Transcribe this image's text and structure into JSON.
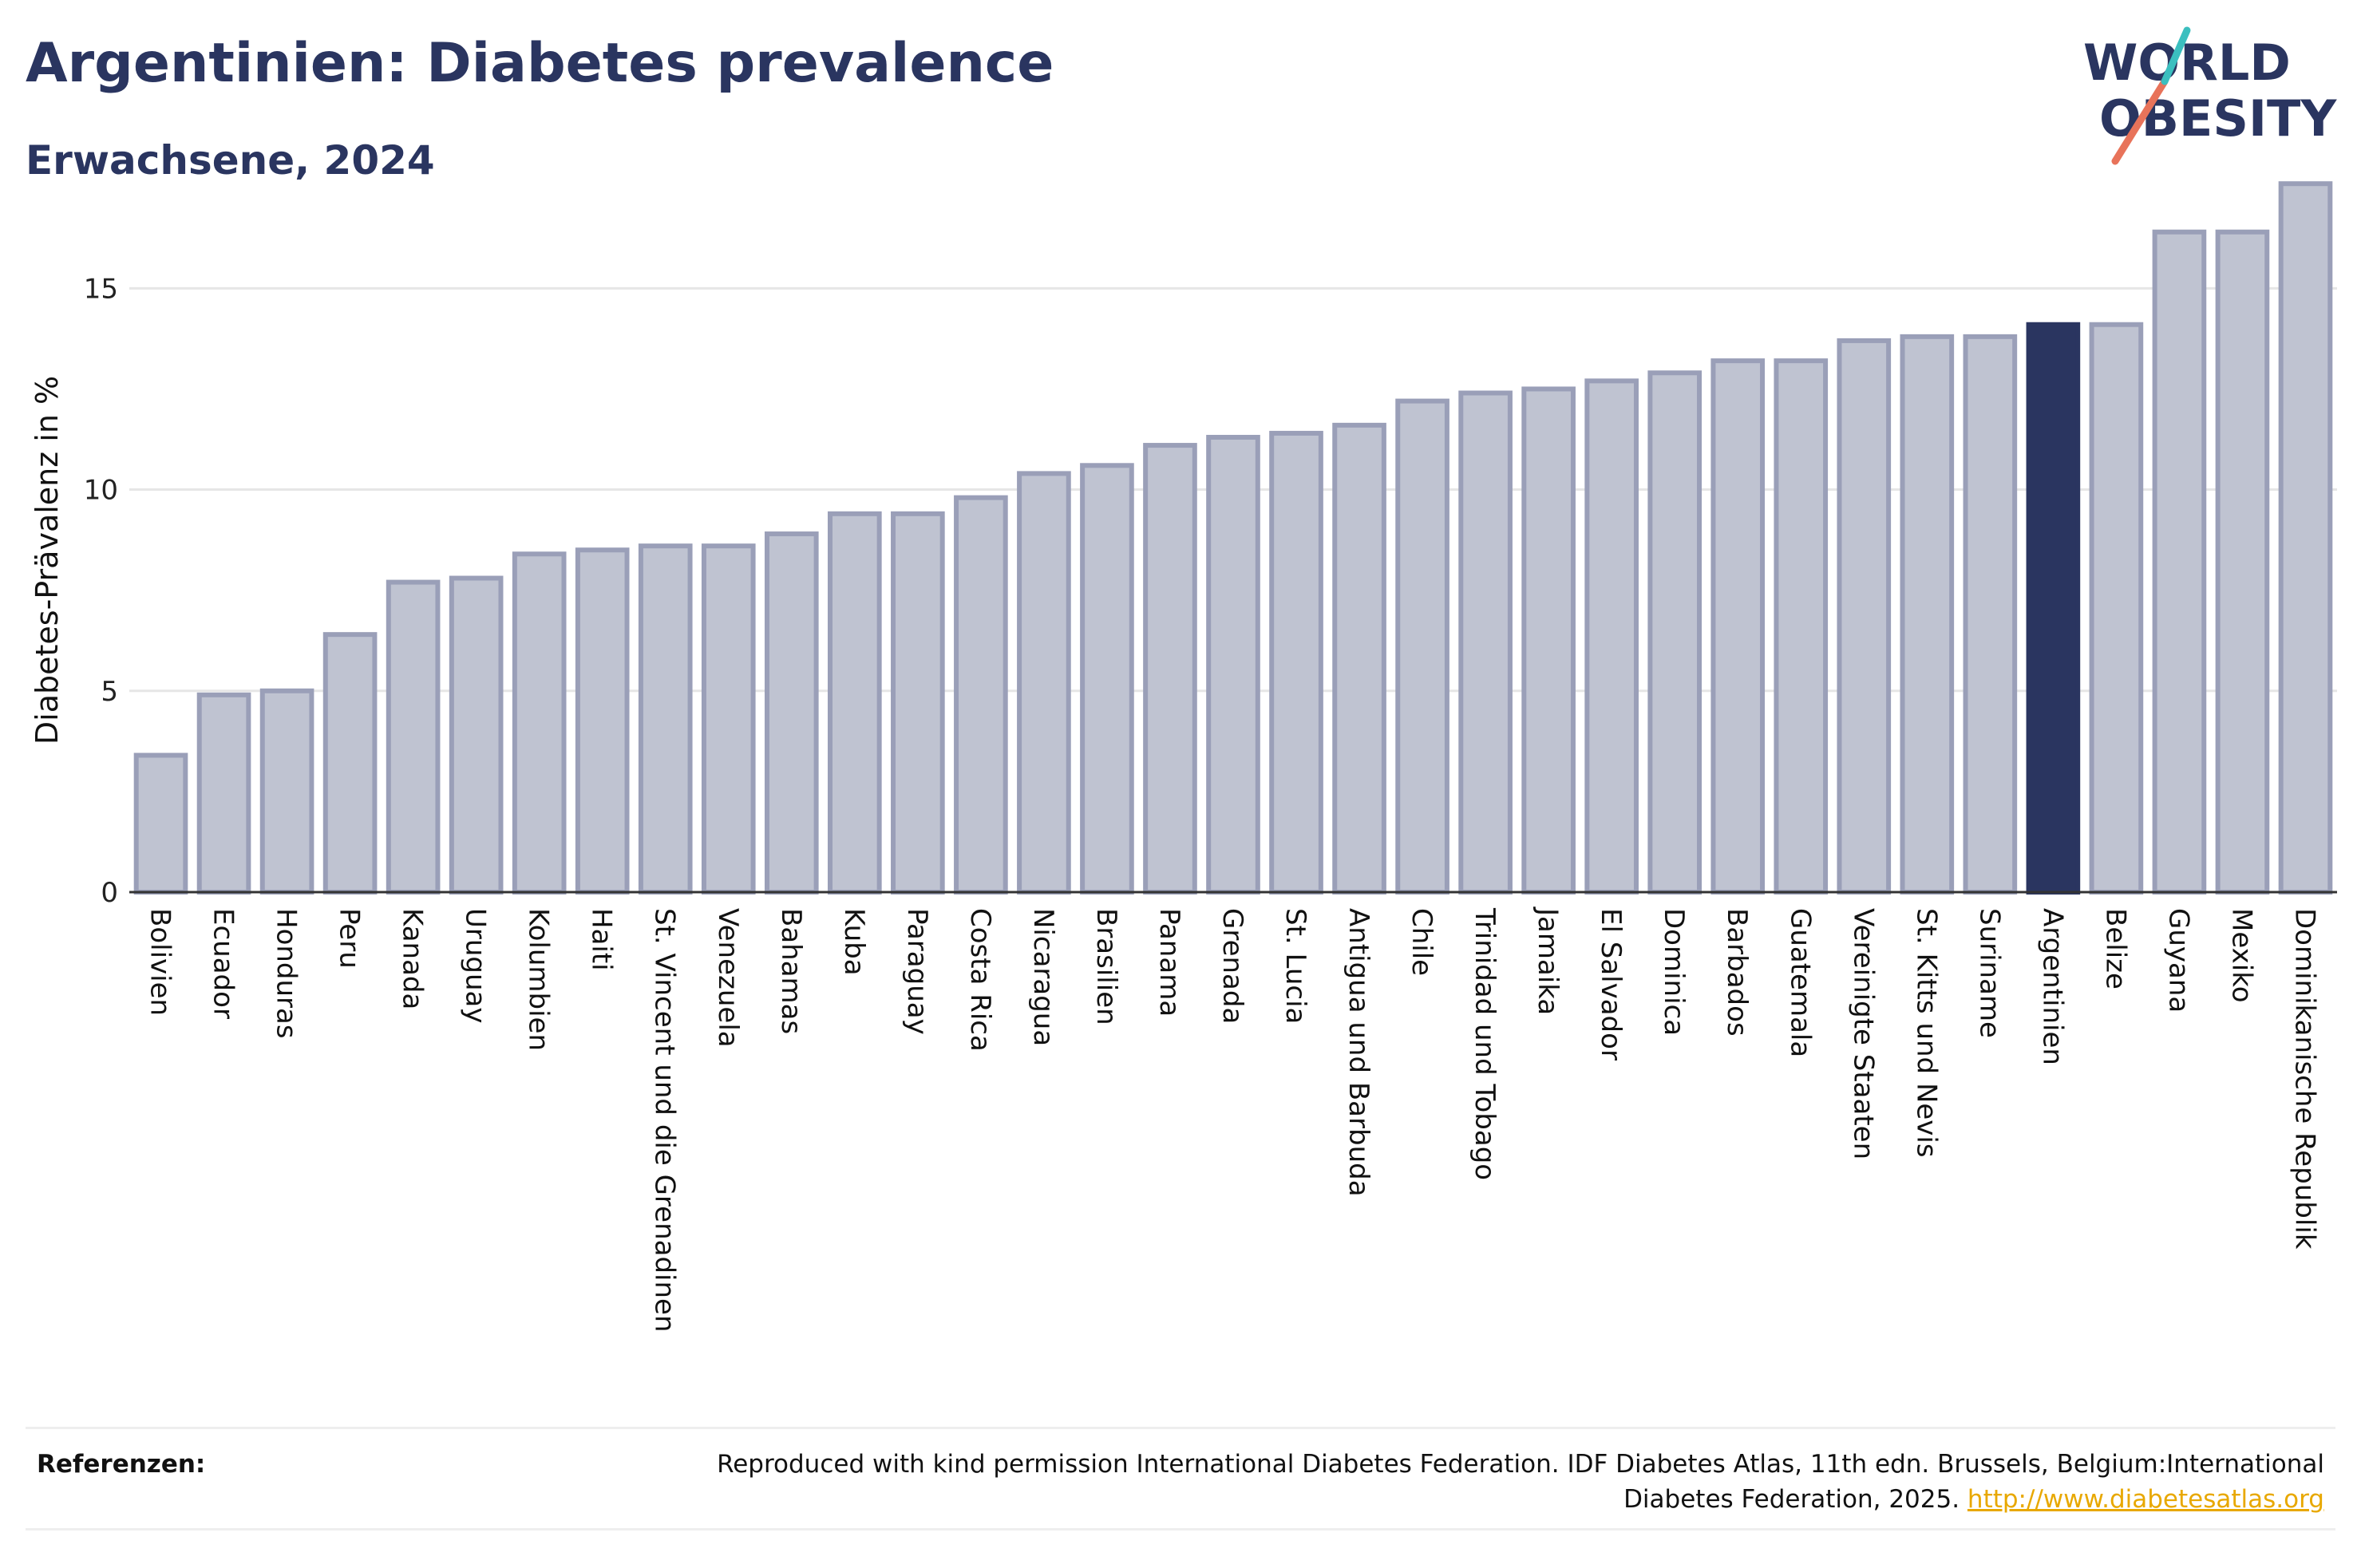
{
  "header": {
    "title": "Argentinien: Diabetes prevalence",
    "subtitle": "Erwachsene, 2024"
  },
  "logo": {
    "line1": "WORLD",
    "line2": "OBESITY"
  },
  "footer": {
    "ref_label": "Referenzen:",
    "ref_text": "Reproduced with kind permission International Diabetes Federation. IDF Diabetes Atlas, 11th edn. Brussels, Belgium:International Diabetes Federation, 2025.",
    "ref_link": "http://www.diabetesatlas.org"
  },
  "colors": {
    "bar_fill": "#bfc3d1",
    "bar_stroke": "#9a9fb8",
    "highlight": "#2a3560",
    "grid": "#e6e6e6",
    "text": "#2a3560",
    "link": "#e8a800"
  },
  "chart_data": {
    "type": "bar",
    "ylabel": "Diabetes-Prävalenz in %",
    "xlabel": "",
    "ylim": [
      0,
      18
    ],
    "yticks": [
      0,
      5,
      10,
      15
    ],
    "grid": true,
    "highlight": "Argentinien",
    "categories": [
      "Bolivien",
      "Ecuador",
      "Honduras",
      "Peru",
      "Kanada",
      "Uruguay",
      "Kolumbien",
      "Haiti",
      "St. Vincent und die Grenadinen",
      "Venezuela",
      "Bahamas",
      "Kuba",
      "Paraguay",
      "Costa Rica",
      "Nicaragua",
      "Brasilien",
      "Panama",
      "Grenada",
      "St. Lucia",
      "Antigua und Barbuda",
      "Chile",
      "Trinidad und Tobago",
      "Jamaika",
      "El Salvador",
      "Dominica",
      "Barbados",
      "Guatemala",
      "Vereinigte Staaten",
      "St. Kitts und Nevis",
      "Suriname",
      "Argentinien",
      "Belize",
      "Guyana",
      "Mexiko",
      "Dominikanische Republik"
    ],
    "values": [
      3.4,
      4.9,
      5.0,
      6.4,
      7.7,
      7.8,
      8.4,
      8.5,
      8.6,
      8.6,
      8.9,
      9.4,
      9.4,
      9.8,
      10.4,
      10.6,
      11.1,
      11.3,
      11.4,
      11.6,
      12.2,
      12.4,
      12.5,
      12.7,
      12.9,
      13.2,
      13.2,
      13.7,
      13.8,
      13.8,
      14.1,
      14.1,
      16.4,
      16.4,
      17.6
    ]
  }
}
